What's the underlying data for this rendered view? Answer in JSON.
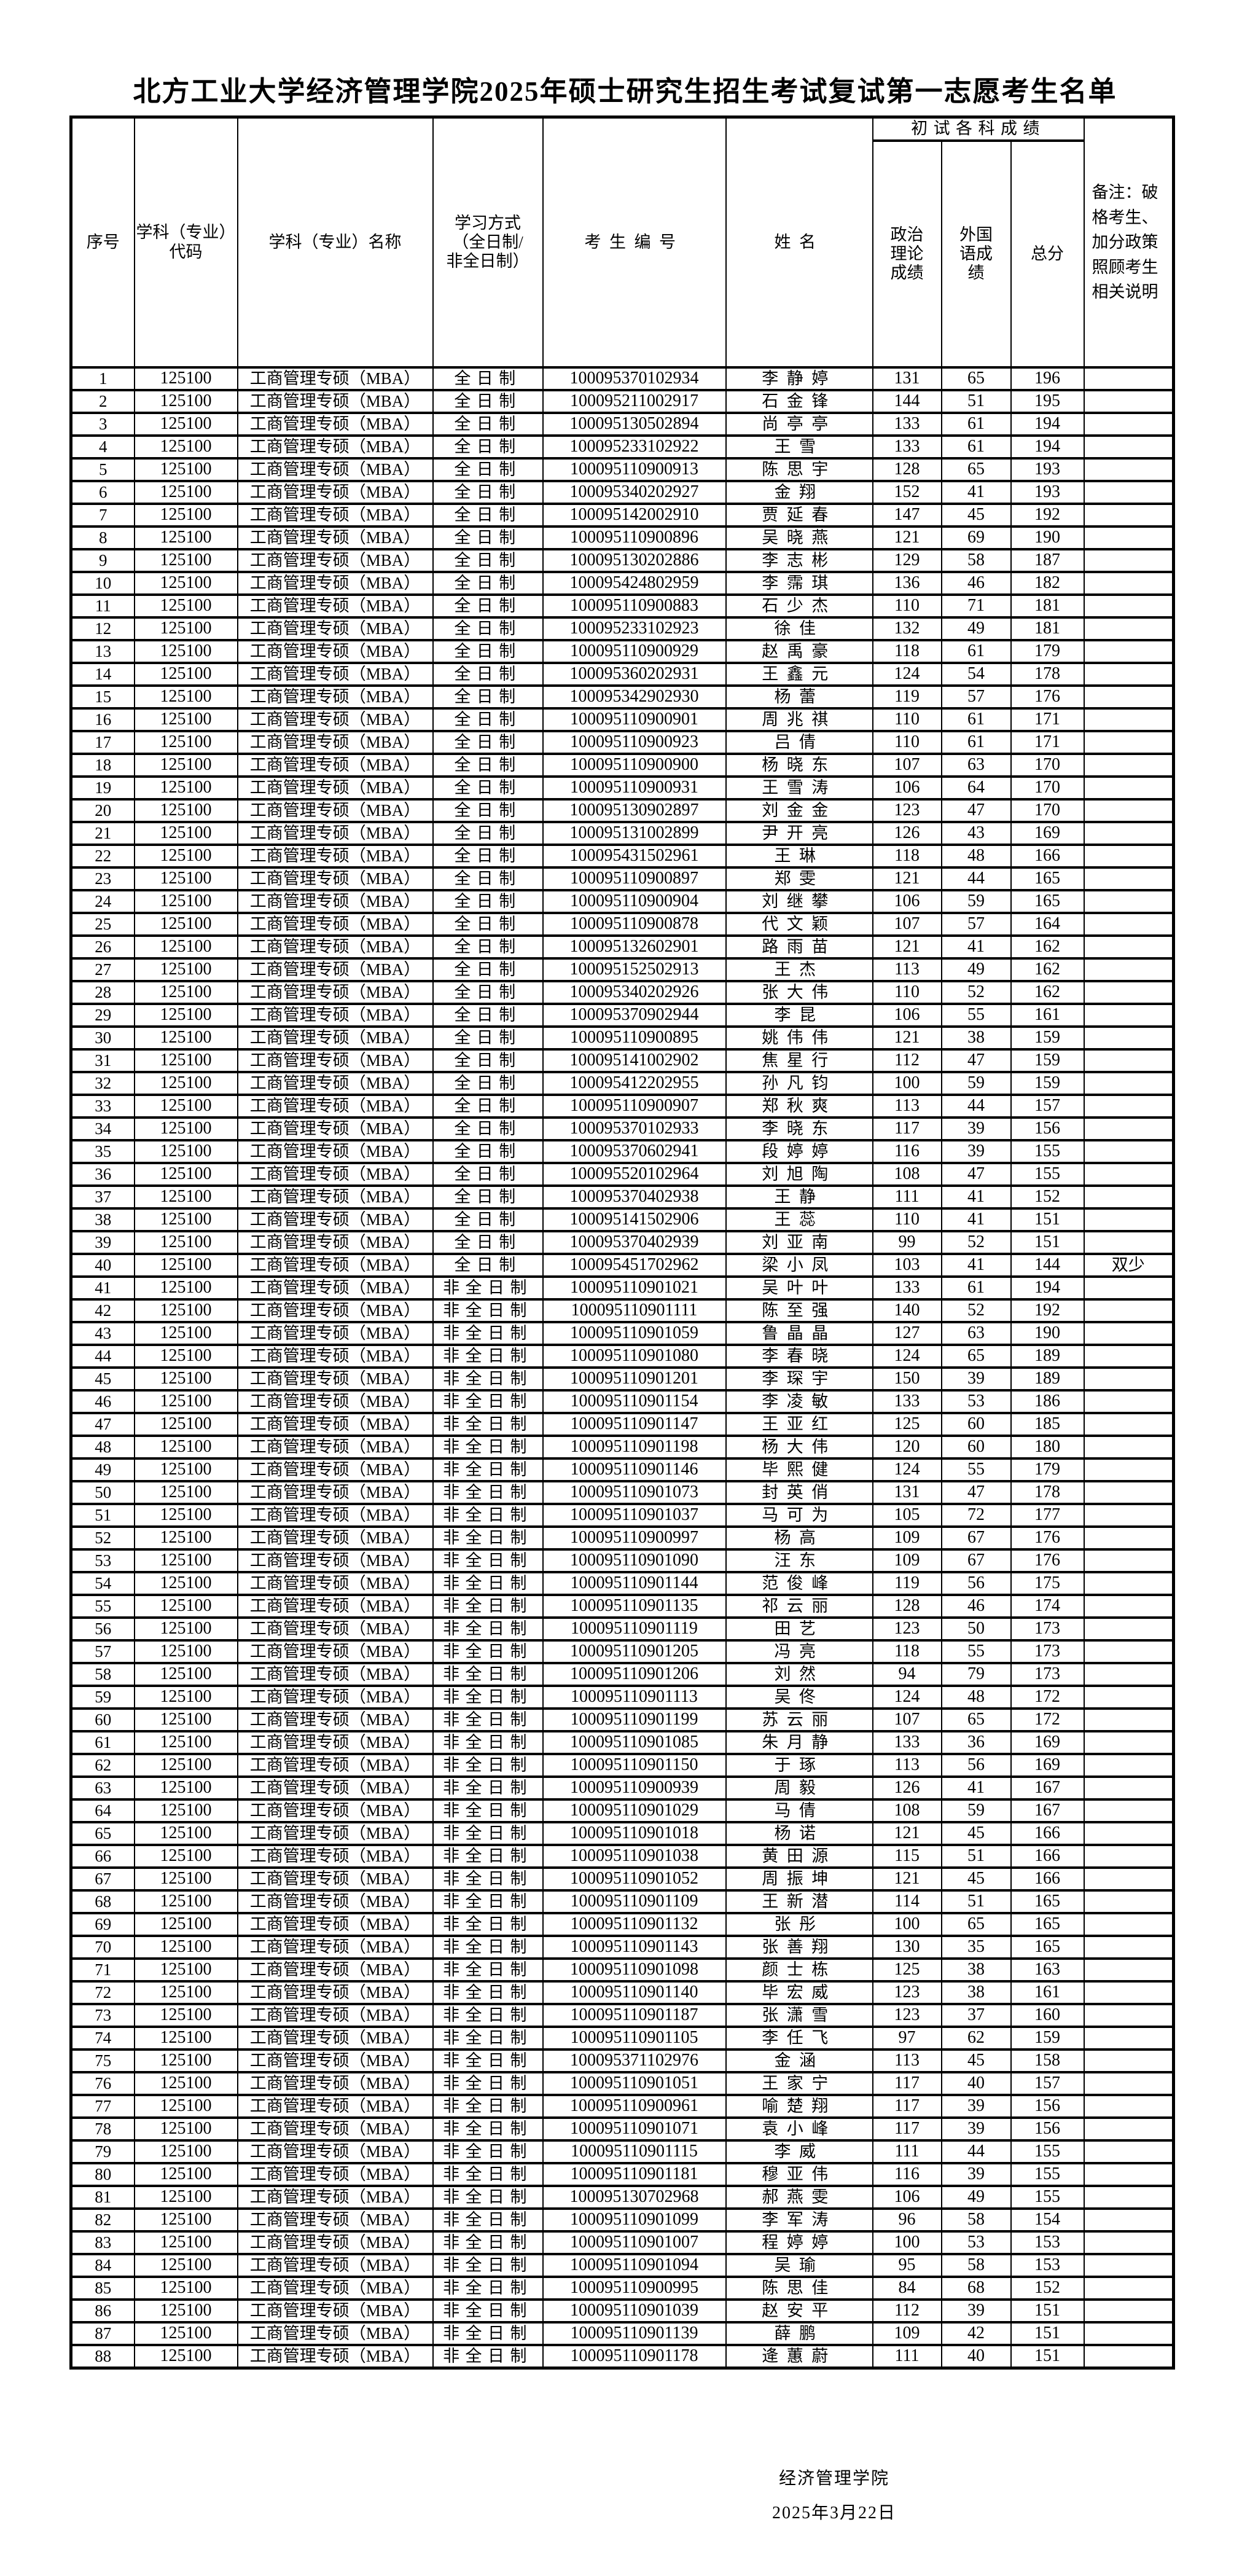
{
  "title": "北方工业大学经济管理学院2025年硕士研究生招生考试复试第一志愿考生名单",
  "table": {
    "headers": {
      "seq": "序号",
      "code": "学科（专业）代码",
      "name": "学科（专业）名称",
      "mode": [
        "学习方式",
        "（全日制/",
        "非全日制）"
      ],
      "candidate_no": "考生编号",
      "student_name": "姓名",
      "group": "初试各科成绩",
      "politics": [
        "政治",
        "理论",
        "成绩"
      ],
      "foreign": [
        "外国",
        "语成",
        "绩"
      ],
      "total": "总分",
      "remark": "备注：破格考生、加分政策照顾考生相关说明"
    },
    "rows": [
      [
        "1",
        "125100",
        "工商管理专硕（MBA）",
        "全日制",
        "100095370102934",
        "李静婷",
        "131",
        "65",
        "196",
        ""
      ],
      [
        "2",
        "125100",
        "工商管理专硕（MBA）",
        "全日制",
        "100095211002917",
        "石金锋",
        "144",
        "51",
        "195",
        ""
      ],
      [
        "3",
        "125100",
        "工商管理专硕（MBA）",
        "全日制",
        "100095130502894",
        "尚亭亭",
        "133",
        "61",
        "194",
        ""
      ],
      [
        "4",
        "125100",
        "工商管理专硕（MBA）",
        "全日制",
        "100095233102922",
        "王雪",
        "133",
        "61",
        "194",
        ""
      ],
      [
        "5",
        "125100",
        "工商管理专硕（MBA）",
        "全日制",
        "100095110900913",
        "陈思宇",
        "128",
        "65",
        "193",
        ""
      ],
      [
        "6",
        "125100",
        "工商管理专硕（MBA）",
        "全日制",
        "100095340202927",
        "金翔",
        "152",
        "41",
        "193",
        ""
      ],
      [
        "7",
        "125100",
        "工商管理专硕（MBA）",
        "全日制",
        "100095142002910",
        "贾延春",
        "147",
        "45",
        "192",
        ""
      ],
      [
        "8",
        "125100",
        "工商管理专硕（MBA）",
        "全日制",
        "100095110900896",
        "吴晓燕",
        "121",
        "69",
        "190",
        ""
      ],
      [
        "9",
        "125100",
        "工商管理专硕（MBA）",
        "全日制",
        "100095130202886",
        "李志彬",
        "129",
        "58",
        "187",
        ""
      ],
      [
        "10",
        "125100",
        "工商管理专硕（MBA）",
        "全日制",
        "100095424802959",
        "李霈琪",
        "136",
        "46",
        "182",
        ""
      ],
      [
        "11",
        "125100",
        "工商管理专硕（MBA）",
        "全日制",
        "100095110900883",
        "石少杰",
        "110",
        "71",
        "181",
        ""
      ],
      [
        "12",
        "125100",
        "工商管理专硕（MBA）",
        "全日制",
        "100095233102923",
        "徐佳",
        "132",
        "49",
        "181",
        ""
      ],
      [
        "13",
        "125100",
        "工商管理专硕（MBA）",
        "全日制",
        "100095110900929",
        "赵禹豪",
        "118",
        "61",
        "179",
        ""
      ],
      [
        "14",
        "125100",
        "工商管理专硕（MBA）",
        "全日制",
        "100095360202931",
        "王鑫元",
        "124",
        "54",
        "178",
        ""
      ],
      [
        "15",
        "125100",
        "工商管理专硕（MBA）",
        "全日制",
        "100095342902930",
        "杨蕾",
        "119",
        "57",
        "176",
        ""
      ],
      [
        "16",
        "125100",
        "工商管理专硕（MBA）",
        "全日制",
        "100095110900901",
        "周兆祺",
        "110",
        "61",
        "171",
        ""
      ],
      [
        "17",
        "125100",
        "工商管理专硕（MBA）",
        "全日制",
        "100095110900923",
        "吕倩",
        "110",
        "61",
        "171",
        ""
      ],
      [
        "18",
        "125100",
        "工商管理专硕（MBA）",
        "全日制",
        "100095110900900",
        "杨晓东",
        "107",
        "63",
        "170",
        ""
      ],
      [
        "19",
        "125100",
        "工商管理专硕（MBA）",
        "全日制",
        "100095110900931",
        "王雪涛",
        "106",
        "64",
        "170",
        ""
      ],
      [
        "20",
        "125100",
        "工商管理专硕（MBA）",
        "全日制",
        "100095130902897",
        "刘金金",
        "123",
        "47",
        "170",
        ""
      ],
      [
        "21",
        "125100",
        "工商管理专硕（MBA）",
        "全日制",
        "100095131002899",
        "尹开亮",
        "126",
        "43",
        "169",
        ""
      ],
      [
        "22",
        "125100",
        "工商管理专硕（MBA）",
        "全日制",
        "100095431502961",
        "王琳",
        "118",
        "48",
        "166",
        ""
      ],
      [
        "23",
        "125100",
        "工商管理专硕（MBA）",
        "全日制",
        "100095110900897",
        "郑雯",
        "121",
        "44",
        "165",
        ""
      ],
      [
        "24",
        "125100",
        "工商管理专硕（MBA）",
        "全日制",
        "100095110900904",
        "刘继攀",
        "106",
        "59",
        "165",
        ""
      ],
      [
        "25",
        "125100",
        "工商管理专硕（MBA）",
        "全日制",
        "100095110900878",
        "代文颖",
        "107",
        "57",
        "164",
        ""
      ],
      [
        "26",
        "125100",
        "工商管理专硕（MBA）",
        "全日制",
        "100095132602901",
        "路雨苗",
        "121",
        "41",
        "162",
        ""
      ],
      [
        "27",
        "125100",
        "工商管理专硕（MBA）",
        "全日制",
        "100095152502913",
        "王杰",
        "113",
        "49",
        "162",
        ""
      ],
      [
        "28",
        "125100",
        "工商管理专硕（MBA）",
        "全日制",
        "100095340202926",
        "张大伟",
        "110",
        "52",
        "162",
        ""
      ],
      [
        "29",
        "125100",
        "工商管理专硕（MBA）",
        "全日制",
        "100095370902944",
        "李昆",
        "106",
        "55",
        "161",
        ""
      ],
      [
        "30",
        "125100",
        "工商管理专硕（MBA）",
        "全日制",
        "100095110900895",
        "姚伟伟",
        "121",
        "38",
        "159",
        ""
      ],
      [
        "31",
        "125100",
        "工商管理专硕（MBA）",
        "全日制",
        "100095141002902",
        "焦星行",
        "112",
        "47",
        "159",
        ""
      ],
      [
        "32",
        "125100",
        "工商管理专硕（MBA）",
        "全日制",
        "100095412202955",
        "孙凡钧",
        "100",
        "59",
        "159",
        ""
      ],
      [
        "33",
        "125100",
        "工商管理专硕（MBA）",
        "全日制",
        "100095110900907",
        "郑秋爽",
        "113",
        "44",
        "157",
        ""
      ],
      [
        "34",
        "125100",
        "工商管理专硕（MBA）",
        "全日制",
        "100095370102933",
        "李晓东",
        "117",
        "39",
        "156",
        ""
      ],
      [
        "35",
        "125100",
        "工商管理专硕（MBA）",
        "全日制",
        "100095370602941",
        "段婷婷",
        "116",
        "39",
        "155",
        ""
      ],
      [
        "36",
        "125100",
        "工商管理专硕（MBA）",
        "全日制",
        "100095520102964",
        "刘旭陶",
        "108",
        "47",
        "155",
        ""
      ],
      [
        "37",
        "125100",
        "工商管理专硕（MBA）",
        "全日制",
        "100095370402938",
        "王静",
        "111",
        "41",
        "152",
        ""
      ],
      [
        "38",
        "125100",
        "工商管理专硕（MBA）",
        "全日制",
        "100095141502906",
        "王蕊",
        "110",
        "41",
        "151",
        ""
      ],
      [
        "39",
        "125100",
        "工商管理专硕（MBA）",
        "全日制",
        "100095370402939",
        "刘亚南",
        "99",
        "52",
        "151",
        ""
      ],
      [
        "40",
        "125100",
        "工商管理专硕（MBA）",
        "全日制",
        "100095451702962",
        "梁小凤",
        "103",
        "41",
        "144",
        "双少"
      ],
      [
        "41",
        "125100",
        "工商管理专硕（MBA）",
        "非全日制",
        "100095110901021",
        "吴叶叶",
        "133",
        "61",
        "194",
        ""
      ],
      [
        "42",
        "125100",
        "工商管理专硕（MBA）",
        "非全日制",
        "100095110901111",
        "陈至强",
        "140",
        "52",
        "192",
        ""
      ],
      [
        "43",
        "125100",
        "工商管理专硕（MBA）",
        "非全日制",
        "100095110901059",
        "鲁晶晶",
        "127",
        "63",
        "190",
        ""
      ],
      [
        "44",
        "125100",
        "工商管理专硕（MBA）",
        "非全日制",
        "100095110901080",
        "李春晓",
        "124",
        "65",
        "189",
        ""
      ],
      [
        "45",
        "125100",
        "工商管理专硕（MBA）",
        "非全日制",
        "100095110901201",
        "李琛宇",
        "150",
        "39",
        "189",
        ""
      ],
      [
        "46",
        "125100",
        "工商管理专硕（MBA）",
        "非全日制",
        "100095110901154",
        "李凌敏",
        "133",
        "53",
        "186",
        ""
      ],
      [
        "47",
        "125100",
        "工商管理专硕（MBA）",
        "非全日制",
        "100095110901147",
        "王亚红",
        "125",
        "60",
        "185",
        ""
      ],
      [
        "48",
        "125100",
        "工商管理专硕（MBA）",
        "非全日制",
        "100095110901198",
        "杨大伟",
        "120",
        "60",
        "180",
        ""
      ],
      [
        "49",
        "125100",
        "工商管理专硕（MBA）",
        "非全日制",
        "100095110901146",
        "毕熙健",
        "124",
        "55",
        "179",
        ""
      ],
      [
        "50",
        "125100",
        "工商管理专硕（MBA）",
        "非全日制",
        "100095110901073",
        "封英俏",
        "131",
        "47",
        "178",
        ""
      ],
      [
        "51",
        "125100",
        "工商管理专硕（MBA）",
        "非全日制",
        "100095110901037",
        "马可为",
        "105",
        "72",
        "177",
        ""
      ],
      [
        "52",
        "125100",
        "工商管理专硕（MBA）",
        "非全日制",
        "100095110900997",
        "杨高",
        "109",
        "67",
        "176",
        ""
      ],
      [
        "53",
        "125100",
        "工商管理专硕（MBA）",
        "非全日制",
        "100095110901090",
        "汪东",
        "109",
        "67",
        "176",
        ""
      ],
      [
        "54",
        "125100",
        "工商管理专硕（MBA）",
        "非全日制",
        "100095110901144",
        "范俊峰",
        "119",
        "56",
        "175",
        ""
      ],
      [
        "55",
        "125100",
        "工商管理专硕（MBA）",
        "非全日制",
        "100095110901135",
        "祁云丽",
        "128",
        "46",
        "174",
        ""
      ],
      [
        "56",
        "125100",
        "工商管理专硕（MBA）",
        "非全日制",
        "100095110901119",
        "田艺",
        "123",
        "50",
        "173",
        ""
      ],
      [
        "57",
        "125100",
        "工商管理专硕（MBA）",
        "非全日制",
        "100095110901205",
        "冯亮",
        "118",
        "55",
        "173",
        ""
      ],
      [
        "58",
        "125100",
        "工商管理专硕（MBA）",
        "非全日制",
        "100095110901206",
        "刘然",
        "94",
        "79",
        "173",
        ""
      ],
      [
        "59",
        "125100",
        "工商管理专硕（MBA）",
        "非全日制",
        "100095110901113",
        "吴佟",
        "124",
        "48",
        "172",
        ""
      ],
      [
        "60",
        "125100",
        "工商管理专硕（MBA）",
        "非全日制",
        "100095110901199",
        "苏云丽",
        "107",
        "65",
        "172",
        ""
      ],
      [
        "61",
        "125100",
        "工商管理专硕（MBA）",
        "非全日制",
        "100095110901085",
        "朱月静",
        "133",
        "36",
        "169",
        ""
      ],
      [
        "62",
        "125100",
        "工商管理专硕（MBA）",
        "非全日制",
        "100095110901150",
        "于琢",
        "113",
        "56",
        "169",
        ""
      ],
      [
        "63",
        "125100",
        "工商管理专硕（MBA）",
        "非全日制",
        "100095110900939",
        "周毅",
        "126",
        "41",
        "167",
        ""
      ],
      [
        "64",
        "125100",
        "工商管理专硕（MBA）",
        "非全日制",
        "100095110901029",
        "马倩",
        "108",
        "59",
        "167",
        ""
      ],
      [
        "65",
        "125100",
        "工商管理专硕（MBA）",
        "非全日制",
        "100095110901018",
        "杨诺",
        "121",
        "45",
        "166",
        ""
      ],
      [
        "66",
        "125100",
        "工商管理专硕（MBA）",
        "非全日制",
        "100095110901038",
        "黄田源",
        "115",
        "51",
        "166",
        ""
      ],
      [
        "67",
        "125100",
        "工商管理专硕（MBA）",
        "非全日制",
        "100095110901052",
        "周振坤",
        "121",
        "45",
        "166",
        ""
      ],
      [
        "68",
        "125100",
        "工商管理专硕（MBA）",
        "非全日制",
        "100095110901109",
        "王新潜",
        "114",
        "51",
        "165",
        ""
      ],
      [
        "69",
        "125100",
        "工商管理专硕（MBA）",
        "非全日制",
        "100095110901132",
        "张彤",
        "100",
        "65",
        "165",
        ""
      ],
      [
        "70",
        "125100",
        "工商管理专硕（MBA）",
        "非全日制",
        "100095110901143",
        "张善翔",
        "130",
        "35",
        "165",
        ""
      ],
      [
        "71",
        "125100",
        "工商管理专硕（MBA）",
        "非全日制",
        "100095110901098",
        "颜士栋",
        "125",
        "38",
        "163",
        ""
      ],
      [
        "72",
        "125100",
        "工商管理专硕（MBA）",
        "非全日制",
        "100095110901140",
        "毕宏威",
        "123",
        "38",
        "161",
        ""
      ],
      [
        "73",
        "125100",
        "工商管理专硕（MBA）",
        "非全日制",
        "100095110901187",
        "张潇雪",
        "123",
        "37",
        "160",
        ""
      ],
      [
        "74",
        "125100",
        "工商管理专硕（MBA）",
        "非全日制",
        "100095110901105",
        "李任飞",
        "97",
        "62",
        "159",
        ""
      ],
      [
        "75",
        "125100",
        "工商管理专硕（MBA）",
        "非全日制",
        "100095371102976",
        "金涵",
        "113",
        "45",
        "158",
        ""
      ],
      [
        "76",
        "125100",
        "工商管理专硕（MBA）",
        "非全日制",
        "100095110901051",
        "王家宁",
        "117",
        "40",
        "157",
        ""
      ],
      [
        "77",
        "125100",
        "工商管理专硕（MBA）",
        "非全日制",
        "100095110900961",
        "喻楚翔",
        "117",
        "39",
        "156",
        ""
      ],
      [
        "78",
        "125100",
        "工商管理专硕（MBA）",
        "非全日制",
        "100095110901071",
        "袁小峰",
        "117",
        "39",
        "156",
        ""
      ],
      [
        "79",
        "125100",
        "工商管理专硕（MBA）",
        "非全日制",
        "100095110901115",
        "李威",
        "111",
        "44",
        "155",
        ""
      ],
      [
        "80",
        "125100",
        "工商管理专硕（MBA）",
        "非全日制",
        "100095110901181",
        "穆亚伟",
        "116",
        "39",
        "155",
        ""
      ],
      [
        "81",
        "125100",
        "工商管理专硕（MBA）",
        "非全日制",
        "100095130702968",
        "郝燕雯",
        "106",
        "49",
        "155",
        ""
      ],
      [
        "82",
        "125100",
        "工商管理专硕（MBA）",
        "非全日制",
        "100095110901099",
        "李军涛",
        "96",
        "58",
        "154",
        ""
      ],
      [
        "83",
        "125100",
        "工商管理专硕（MBA）",
        "非全日制",
        "100095110901007",
        "程婷婷",
        "100",
        "53",
        "153",
        ""
      ],
      [
        "84",
        "125100",
        "工商管理专硕（MBA）",
        "非全日制",
        "100095110901094",
        "吴瑜",
        "95",
        "58",
        "153",
        ""
      ],
      [
        "85",
        "125100",
        "工商管理专硕（MBA）",
        "非全日制",
        "100095110900995",
        "陈思佳",
        "84",
        "68",
        "152",
        ""
      ],
      [
        "86",
        "125100",
        "工商管理专硕（MBA）",
        "非全日制",
        "100095110901039",
        "赵安平",
        "112",
        "39",
        "151",
        ""
      ],
      [
        "87",
        "125100",
        "工商管理专硕（MBA）",
        "非全日制",
        "100095110901139",
        "薛鹏",
        "109",
        "42",
        "151",
        ""
      ],
      [
        "88",
        "125100",
        "工商管理专硕（MBA）",
        "非全日制",
        "100095110901178",
        "逄蕙蔚",
        "111",
        "40",
        "151",
        ""
      ]
    ]
  },
  "footer": {
    "org": "经济管理学院",
    "date": "2025年3月22日"
  }
}
